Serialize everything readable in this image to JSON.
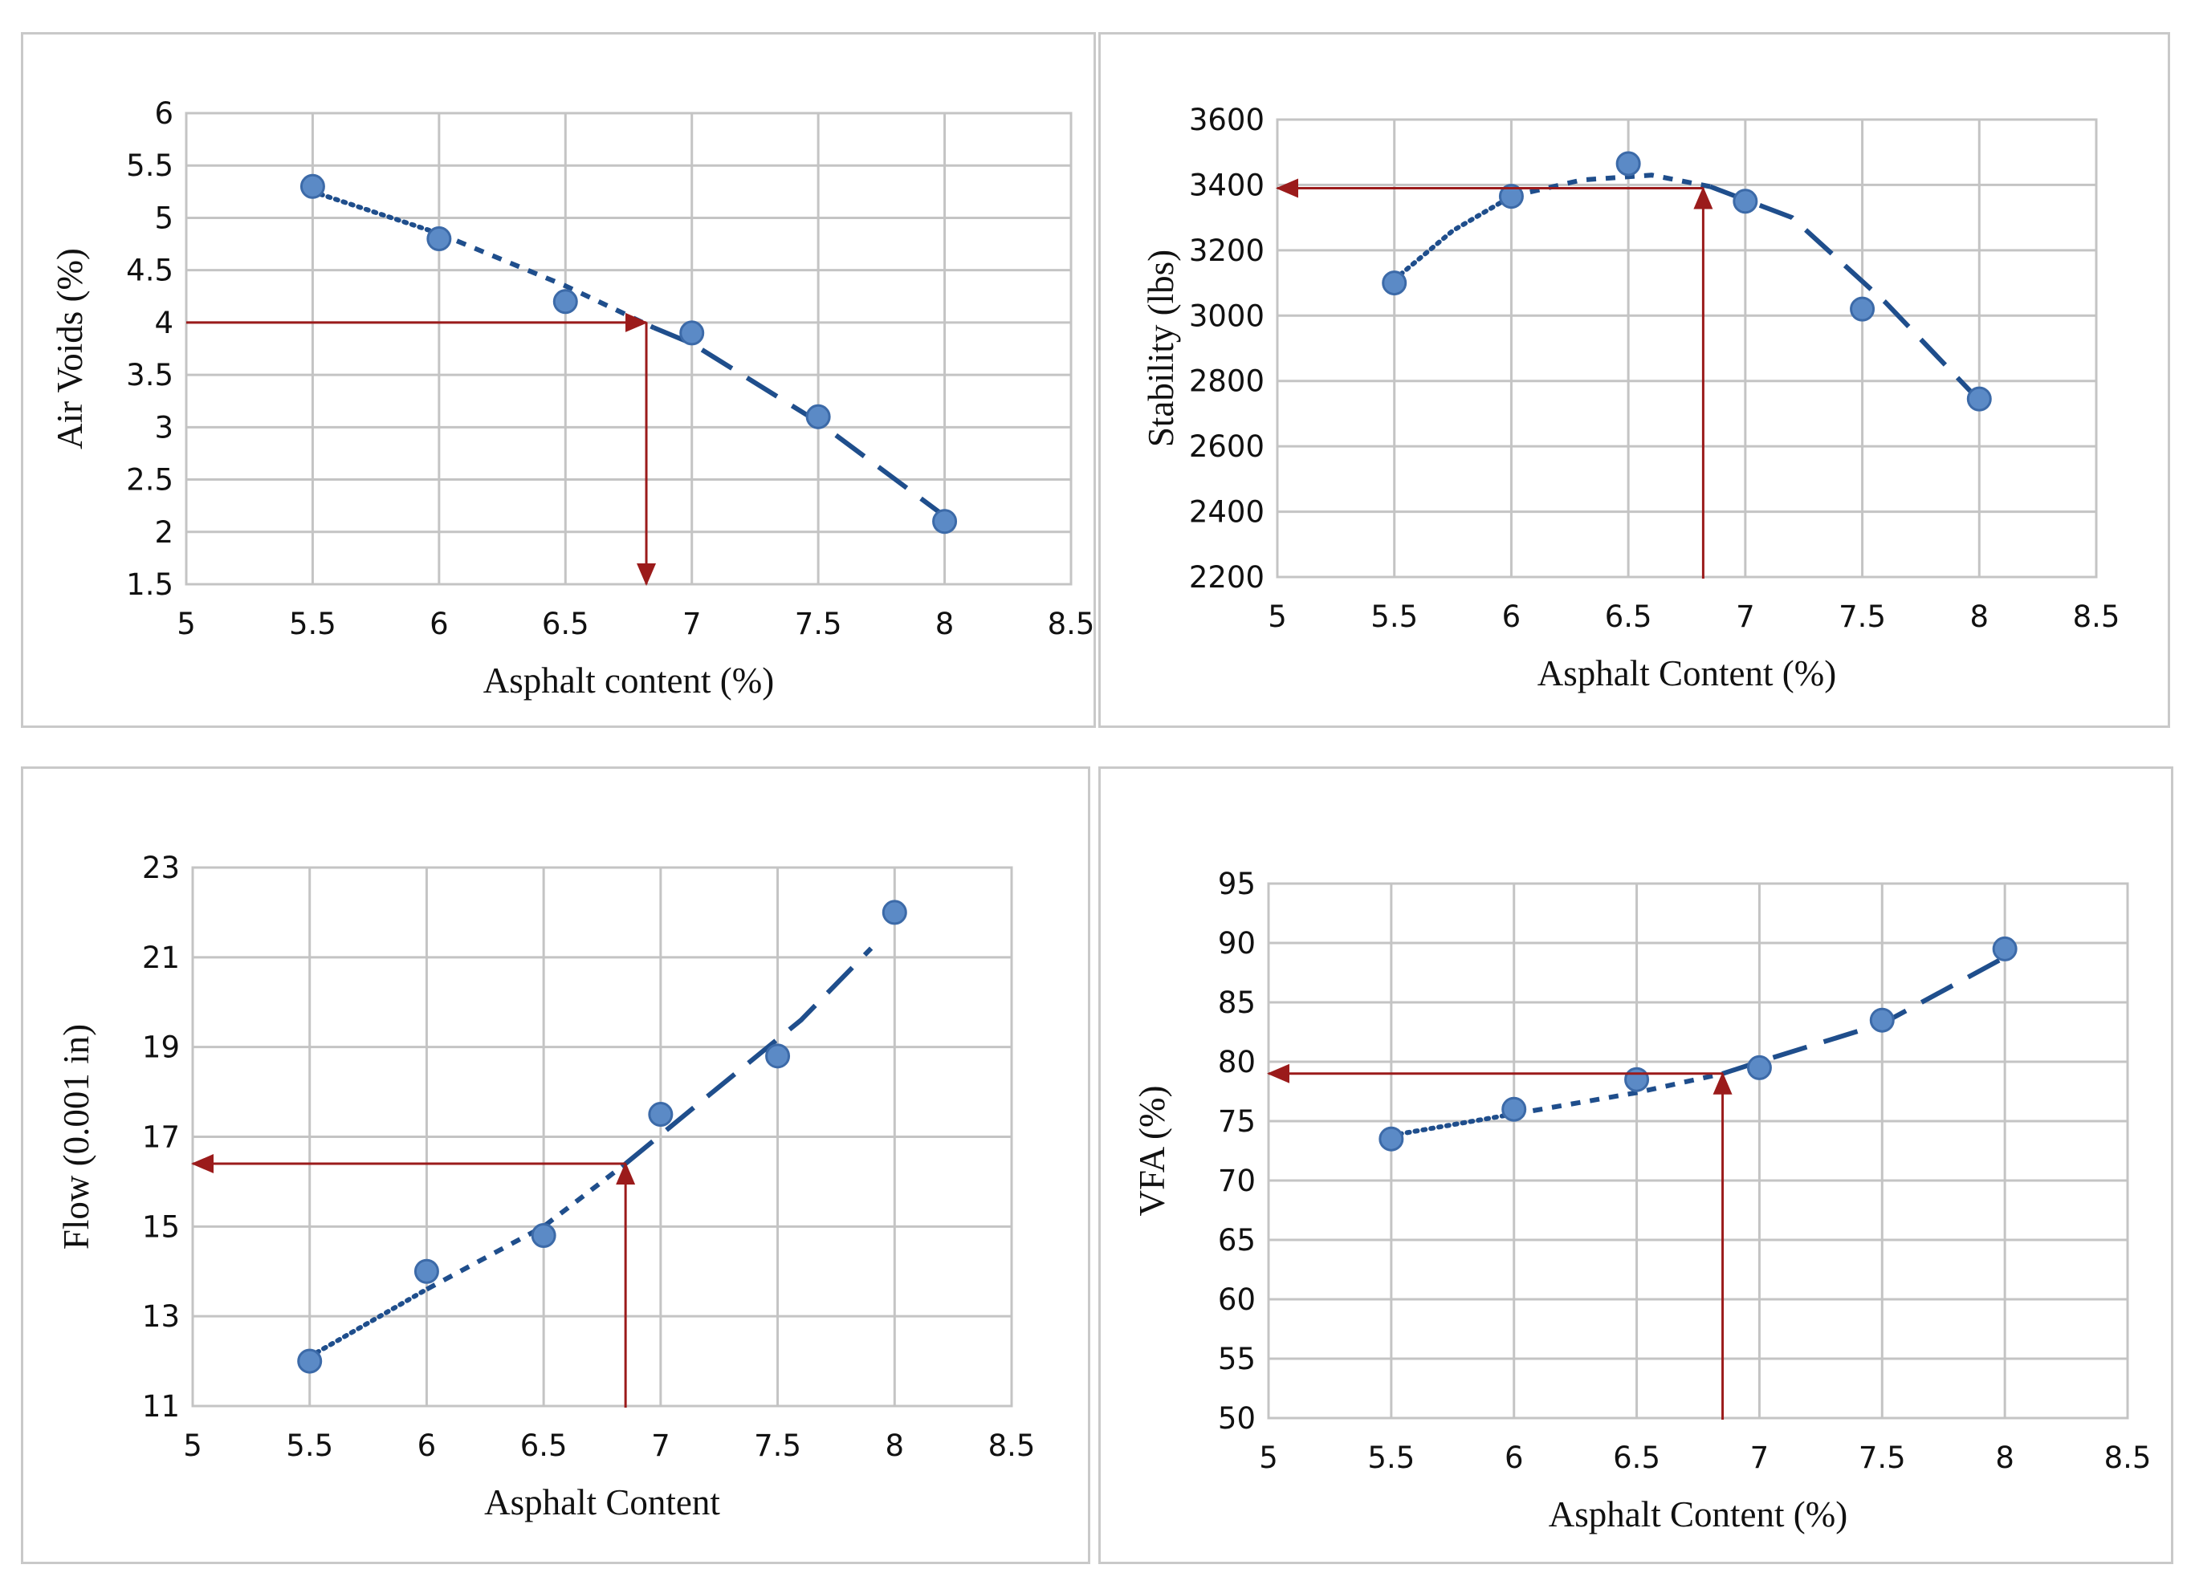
{
  "colors": {
    "marker": "#5b8ac6",
    "marker_edge": "#3c6aa8",
    "trend": "#1f4e8c",
    "arrow": "#9b1b1b",
    "grid": "#c4c4c4"
  },
  "chart_data": [
    {
      "id": "air-voids",
      "type": "scatter",
      "xlabel": "Asphalt content (%)",
      "ylabel": "Air Voids (%)",
      "xlim": [
        5,
        8.5
      ],
      "ylim": [
        1.5,
        6
      ],
      "xticks": [
        5,
        5.5,
        6,
        6.5,
        7,
        7.5,
        8,
        8.5
      ],
      "xtick_labels": [
        "5",
        "5.5",
        "6",
        "6.5",
        "7",
        "7.5",
        "8",
        "8.5"
      ],
      "yticks": [
        1.5,
        2,
        2.5,
        3,
        3.5,
        4,
        4.5,
        5,
        5.5,
        6
      ],
      "ytick_labels": [
        "1.5",
        "2",
        "2.5",
        "3",
        "3.5",
        "4",
        "4.5",
        "5",
        "5.5",
        "6"
      ],
      "points": [
        [
          5.5,
          5.3
        ],
        [
          6,
          4.8
        ],
        [
          6.5,
          4.2
        ],
        [
          7,
          3.9
        ],
        [
          7.5,
          3.1
        ],
        [
          8,
          2.1
        ]
      ],
      "trend_dotted": [
        [
          5.5,
          5.25
        ],
        [
          6,
          4.85
        ]
      ],
      "trend_short_dash": [
        [
          6,
          4.85
        ],
        [
          6.5,
          4.35
        ],
        [
          6.85,
          3.95
        ]
      ],
      "trend_long_dash": [
        [
          6.85,
          3.95
        ],
        [
          7,
          3.8
        ],
        [
          7.5,
          3.05
        ],
        [
          8,
          2.15
        ]
      ],
      "target_x": 6.82,
      "target_y": 4,
      "arrow_mode": "y-to-x"
    },
    {
      "id": "stability",
      "type": "scatter",
      "xlabel": "Asphalt Content (%)",
      "ylabel": "Stability (lbs)",
      "xlim": [
        5,
        8.5
      ],
      "ylim": [
        2200,
        3600
      ],
      "xticks": [
        5,
        5.5,
        6,
        6.5,
        7,
        7.5,
        8,
        8.5
      ],
      "xtick_labels": [
        "5",
        "5.5",
        "6",
        "6.5",
        "7",
        "7.5",
        "8",
        "8.5"
      ],
      "yticks": [
        2200,
        2400,
        2600,
        2800,
        3000,
        3200,
        3400,
        3600
      ],
      "ytick_labels": [
        "2200",
        "2400",
        "2600",
        "2800",
        "3000",
        "3200",
        "3400",
        "3600"
      ],
      "points": [
        [
          5.5,
          3100
        ],
        [
          6,
          3365
        ],
        [
          6.5,
          3465
        ],
        [
          7,
          3350
        ],
        [
          7.5,
          3020
        ],
        [
          8,
          2745
        ]
      ],
      "trend_dotted": [
        [
          5.5,
          3110
        ],
        [
          5.75,
          3260
        ],
        [
          6,
          3365
        ]
      ],
      "trend_short_dash": [
        [
          6,
          3365
        ],
        [
          6.3,
          3415
        ],
        [
          6.6,
          3430
        ],
        [
          6.85,
          3395
        ]
      ],
      "trend_long_dash": [
        [
          6.85,
          3395
        ],
        [
          7.2,
          3300
        ],
        [
          7.6,
          3040
        ],
        [
          8,
          2740
        ]
      ],
      "target_x": 6.82,
      "target_y": 3390,
      "arrow_mode": "x-to-y"
    },
    {
      "id": "flow",
      "type": "scatter",
      "xlabel": "Asphalt Content",
      "ylabel": "Flow (0.001 in)",
      "xlim": [
        5,
        8.5
      ],
      "ylim": [
        11,
        23
      ],
      "xticks": [
        5,
        5.5,
        6,
        6.5,
        7,
        7.5,
        8,
        8.5
      ],
      "xtick_labels": [
        "5",
        "5.5",
        "6",
        "6.5",
        "7",
        "7.5",
        "8",
        "8.5"
      ],
      "yticks": [
        11,
        13,
        15,
        17,
        19,
        21,
        23
      ],
      "ytick_labels": [
        "11",
        "13",
        "15",
        "17",
        "19",
        "21",
        "23"
      ],
      "points": [
        [
          5.5,
          12
        ],
        [
          6,
          14
        ],
        [
          6.5,
          14.8
        ],
        [
          7,
          17.5
        ],
        [
          7.5,
          18.8
        ],
        [
          8,
          22
        ]
      ],
      "trend_dotted": [
        [
          5.5,
          12.1
        ],
        [
          6,
          13.6
        ]
      ],
      "trend_short_dash": [
        [
          6,
          13.6
        ],
        [
          6.5,
          15
        ],
        [
          6.85,
          16.4
        ]
      ],
      "trend_long_dash": [
        [
          6.85,
          16.4
        ],
        [
          7.2,
          17.9
        ],
        [
          7.6,
          19.6
        ],
        [
          7.9,
          21.2
        ]
      ],
      "target_x": 6.85,
      "target_y": 16.4,
      "arrow_mode": "x-to-y"
    },
    {
      "id": "vfa",
      "type": "scatter",
      "xlabel": "Asphalt Content (%)",
      "ylabel": "VFA (%)",
      "xlim": [
        5,
        8.5
      ],
      "ylim": [
        50,
        95
      ],
      "xticks": [
        5,
        5.5,
        6,
        6.5,
        7,
        7.5,
        8,
        8.5
      ],
      "xtick_labels": [
        "5",
        "5.5",
        "6",
        "6.5",
        "7",
        "7.5",
        "8",
        "8.5"
      ],
      "yticks": [
        50,
        55,
        60,
        65,
        70,
        75,
        80,
        85,
        90,
        95
      ],
      "ytick_labels": [
        "50",
        "55",
        "60",
        "65",
        "70",
        "75",
        "80",
        "85",
        "90",
        "95"
      ],
      "points": [
        [
          5.5,
          73.5
        ],
        [
          6,
          76
        ],
        [
          6.5,
          78.5
        ],
        [
          7,
          79.5
        ],
        [
          7.5,
          83.5
        ],
        [
          8,
          89.5
        ]
      ],
      "trend_dotted": [
        [
          5.5,
          73.8
        ],
        [
          6,
          75.6
        ]
      ],
      "trend_short_dash": [
        [
          6,
          75.6
        ],
        [
          6.5,
          77.4
        ],
        [
          6.85,
          79
        ]
      ],
      "trend_long_dash": [
        [
          6.85,
          79
        ],
        [
          7,
          80
        ],
        [
          7.5,
          83.2
        ],
        [
          8,
          88.8
        ]
      ],
      "target_x": 6.85,
      "target_y": 79,
      "arrow_mode": "x-to-y"
    }
  ]
}
